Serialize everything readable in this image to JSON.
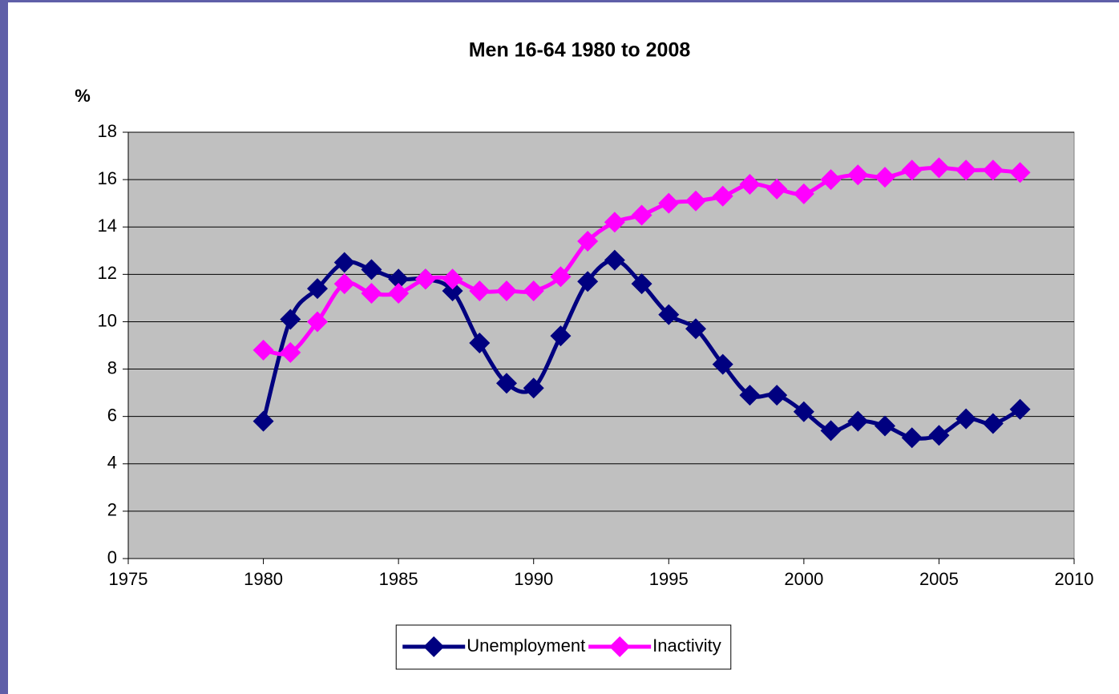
{
  "chart_data": {
    "type": "line",
    "title": "Men 16-64 1980 to 2008",
    "y_label": "%",
    "x": [
      1980,
      1981,
      1982,
      1983,
      1984,
      1985,
      1986,
      1987,
      1988,
      1989,
      1990,
      1991,
      1992,
      1993,
      1994,
      1995,
      1996,
      1997,
      1998,
      1999,
      2000,
      2001,
      2002,
      2003,
      2004,
      2005,
      2006,
      2007,
      2008
    ],
    "series": [
      {
        "name": "Unemployment",
        "color": "#000080",
        "values": [
          5.8,
          10.1,
          11.4,
          12.5,
          12.2,
          11.8,
          11.8,
          11.3,
          9.1,
          7.4,
          7.2,
          9.4,
          11.7,
          12.6,
          11.6,
          10.3,
          9.7,
          8.2,
          6.9,
          6.9,
          6.2,
          5.4,
          5.8,
          5.6,
          5.1,
          5.2,
          5.9,
          5.7,
          6.3
        ]
      },
      {
        "name": "Inactivity",
        "color": "#ff00ff",
        "values": [
          8.8,
          8.7,
          10.0,
          11.6,
          11.2,
          11.2,
          11.8,
          11.8,
          11.3,
          11.3,
          11.3,
          11.9,
          13.4,
          14.2,
          14.5,
          15.0,
          15.1,
          15.3,
          15.8,
          15.6,
          15.4,
          16.0,
          16.2,
          16.1,
          16.4,
          16.5,
          16.4,
          16.4,
          16.3
        ]
      }
    ],
    "xlim": [
      1975,
      2010
    ],
    "xticks": [
      1975,
      1980,
      1985,
      1990,
      1995,
      2000,
      2005,
      2010
    ],
    "ylim": [
      0,
      18
    ],
    "yticks": [
      0,
      2,
      4,
      6,
      8,
      10,
      12,
      14,
      16,
      18
    ],
    "grid": true,
    "legend": "bottom",
    "plot_background": "#c0c0c0"
  }
}
